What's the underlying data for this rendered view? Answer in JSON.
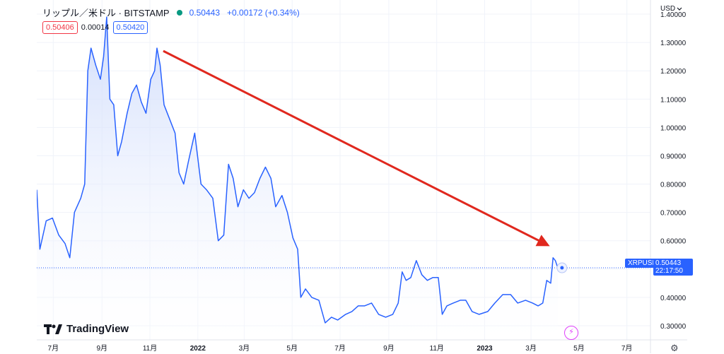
{
  "header": {
    "title": "リップル／米ドル · BITSTAMP",
    "price": "0.50443",
    "change": "+0.00172 (+0.34%)"
  },
  "ohlc": {
    "bid": "0.50406",
    "spread": "0.00014",
    "ask": "0.50420"
  },
  "currency": "USD",
  "logo": "TradingView",
  "last_label": {
    "symbol": "XRPUSD",
    "price": "0.50443",
    "countdown": "22:17:50"
  },
  "colors": {
    "line": "#2962ff",
    "arrow": "#e0281e",
    "area_top": "#dbe4fb",
    "grid": "#f0f3fa"
  },
  "icons": {
    "bolt": "lightning-icon",
    "gear": "gear-icon",
    "caret": "chevron-down-icon",
    "status": "market-open-dot"
  },
  "chart_data": {
    "type": "area",
    "symbol": "XRPUSD",
    "x_ticks": [
      "7月",
      "9月",
      "11月",
      "2022",
      "3月",
      "5月",
      "7月",
      "9月",
      "11月",
      "2023",
      "3月",
      "5月",
      "7月"
    ],
    "y_ticks": [
      "1.40000",
      "1.30000",
      "1.20000",
      "1.10000",
      "1.00000",
      "0.90000",
      "0.80000",
      "0.70000",
      "0.60000",
      "0.50000",
      "0.40000",
      "0.30000"
    ],
    "ylim": [
      0.25,
      1.45
    ],
    "xlim": [
      "2021-06-10",
      "2023-07-31"
    ],
    "last_value": 0.50443,
    "points": [
      [
        "2021-06-10",
        0.78
      ],
      [
        "2021-06-14",
        0.57
      ],
      [
        "2021-06-22",
        0.67
      ],
      [
        "2021-06-30",
        0.68
      ],
      [
        "2021-07-08",
        0.62
      ],
      [
        "2021-07-16",
        0.59
      ],
      [
        "2021-07-22",
        0.54
      ],
      [
        "2021-07-28",
        0.7
      ],
      [
        "2021-08-05",
        0.75
      ],
      [
        "2021-08-10",
        0.8
      ],
      [
        "2021-08-14",
        1.2
      ],
      [
        "2021-08-18",
        1.28
      ],
      [
        "2021-08-24",
        1.22
      ],
      [
        "2021-08-30",
        1.17
      ],
      [
        "2021-09-03",
        1.25
      ],
      [
        "2021-09-07",
        1.39
      ],
      [
        "2021-09-11",
        1.1
      ],
      [
        "2021-09-16",
        1.08
      ],
      [
        "2021-09-21",
        0.9
      ],
      [
        "2021-09-26",
        0.95
      ],
      [
        "2021-10-03",
        1.05
      ],
      [
        "2021-10-09",
        1.12
      ],
      [
        "2021-10-15",
        1.15
      ],
      [
        "2021-10-21",
        1.09
      ],
      [
        "2021-10-27",
        1.05
      ],
      [
        "2021-11-02",
        1.17
      ],
      [
        "2021-11-07",
        1.2
      ],
      [
        "2021-11-10",
        1.28
      ],
      [
        "2021-11-14",
        1.22
      ],
      [
        "2021-11-19",
        1.08
      ],
      [
        "2021-11-26",
        1.03
      ],
      [
        "2021-12-03",
        0.98
      ],
      [
        "2021-12-08",
        0.84
      ],
      [
        "2021-12-14",
        0.8
      ],
      [
        "2021-12-20",
        0.88
      ],
      [
        "2021-12-28",
        0.98
      ],
      [
        "2022-01-05",
        0.8
      ],
      [
        "2022-01-12",
        0.78
      ],
      [
        "2022-01-20",
        0.75
      ],
      [
        "2022-01-27",
        0.6
      ],
      [
        "2022-02-03",
        0.62
      ],
      [
        "2022-02-09",
        0.87
      ],
      [
        "2022-02-15",
        0.82
      ],
      [
        "2022-02-21",
        0.72
      ],
      [
        "2022-02-28",
        0.78
      ],
      [
        "2022-03-07",
        0.75
      ],
      [
        "2022-03-14",
        0.77
      ],
      [
        "2022-03-21",
        0.82
      ],
      [
        "2022-03-28",
        0.86
      ],
      [
        "2022-04-04",
        0.82
      ],
      [
        "2022-04-10",
        0.72
      ],
      [
        "2022-04-18",
        0.76
      ],
      [
        "2022-04-25",
        0.7
      ],
      [
        "2022-05-02",
        0.61
      ],
      [
        "2022-05-08",
        0.57
      ],
      [
        "2022-05-12",
        0.4
      ],
      [
        "2022-05-18",
        0.43
      ],
      [
        "2022-05-26",
        0.4
      ],
      [
        "2022-06-04",
        0.39
      ],
      [
        "2022-06-12",
        0.31
      ],
      [
        "2022-06-20",
        0.33
      ],
      [
        "2022-06-28",
        0.32
      ],
      [
        "2022-07-08",
        0.34
      ],
      [
        "2022-07-16",
        0.35
      ],
      [
        "2022-07-24",
        0.37
      ],
      [
        "2022-08-01",
        0.37
      ],
      [
        "2022-08-10",
        0.38
      ],
      [
        "2022-08-19",
        0.34
      ],
      [
        "2022-08-28",
        0.33
      ],
      [
        "2022-09-06",
        0.34
      ],
      [
        "2022-09-13",
        0.38
      ],
      [
        "2022-09-18",
        0.49
      ],
      [
        "2022-09-23",
        0.46
      ],
      [
        "2022-09-29",
        0.47
      ],
      [
        "2022-10-06",
        0.53
      ],
      [
        "2022-10-13",
        0.48
      ],
      [
        "2022-10-20",
        0.46
      ],
      [
        "2022-10-27",
        0.47
      ],
      [
        "2022-11-03",
        0.47
      ],
      [
        "2022-11-08",
        0.34
      ],
      [
        "2022-11-14",
        0.37
      ],
      [
        "2022-11-22",
        0.38
      ],
      [
        "2022-12-01",
        0.39
      ],
      [
        "2022-12-08",
        0.39
      ],
      [
        "2022-12-16",
        0.35
      ],
      [
        "2022-12-25",
        0.34
      ],
      [
        "2023-01-05",
        0.35
      ],
      [
        "2023-01-14",
        0.38
      ],
      [
        "2023-01-24",
        0.41
      ],
      [
        "2023-02-03",
        0.41
      ],
      [
        "2023-02-12",
        0.38
      ],
      [
        "2023-02-22",
        0.39
      ],
      [
        "2023-03-03",
        0.38
      ],
      [
        "2023-03-10",
        0.37
      ],
      [
        "2023-03-16",
        0.38
      ],
      [
        "2023-03-21",
        0.46
      ],
      [
        "2023-03-26",
        0.45
      ],
      [
        "2023-03-29",
        0.54
      ],
      [
        "2023-04-01",
        0.53
      ],
      [
        "2023-04-04",
        0.50443
      ]
    ],
    "annotation": {
      "type": "arrow",
      "from": [
        "2021-11-18",
        1.27
      ],
      "to": [
        "2023-03-22",
        0.585
      ]
    }
  }
}
